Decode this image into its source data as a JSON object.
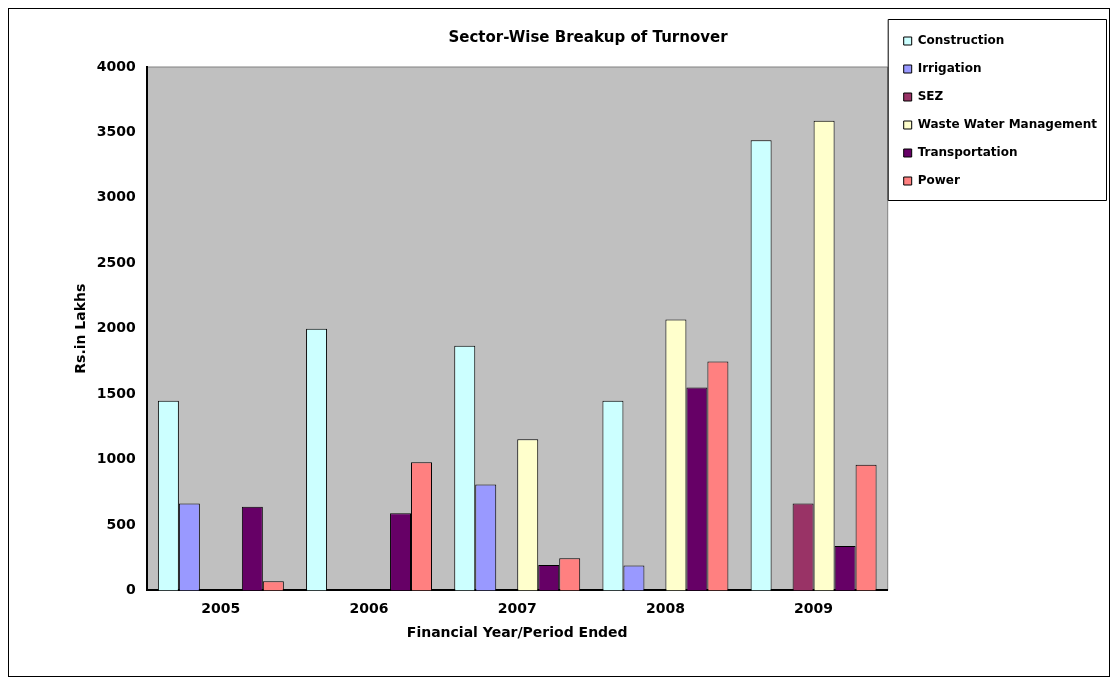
{
  "chart_data": {
    "type": "bar",
    "title": "Sector-Wise Breakup of Turnover",
    "xlabel": "Financial Year/Period Ended",
    "ylabel": "Rs.in Lakhs",
    "categories": [
      "2005",
      "2006",
      "2007",
      "2008",
      "2009"
    ],
    "series": [
      {
        "name": "Construction",
        "color": "#ccffff",
        "values": [
          1450,
          2000,
          1870,
          1450,
          3440
        ]
      },
      {
        "name": "Irrigation",
        "color": "#9999ff",
        "values": [
          665,
          null,
          810,
          190,
          null
        ]
      },
      {
        "name": "SEZ",
        "color": "#993366",
        "values": [
          null,
          null,
          null,
          null,
          665
        ]
      },
      {
        "name": "Waste Water Management",
        "color": "#ffffcc",
        "values": [
          null,
          null,
          1155,
          2070,
          3590
        ]
      },
      {
        "name": "Transportation",
        "color": "#660066",
        "values": [
          640,
          590,
          195,
          1550,
          340
        ]
      },
      {
        "name": "Power",
        "color": "#ff8080",
        "values": [
          70,
          980,
          245,
          1750,
          960
        ]
      }
    ],
    "ylim": [
      0,
      4000
    ],
    "yticks": [
      0,
      500,
      1000,
      1500,
      2000,
      2500,
      3000,
      3500,
      4000
    ],
    "legend": "top right"
  }
}
